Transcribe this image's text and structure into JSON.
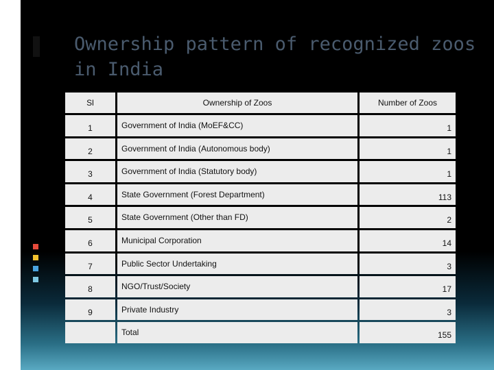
{
  "slide": {
    "title": "Ownership pattern of recognized zoos in India"
  },
  "table": {
    "headers": [
      "Sl",
      "Ownership of Zoos",
      "Number of Zoos"
    ],
    "rows": [
      {
        "sl": "1",
        "owner": "Government of India (MoEF&CC)",
        "count": "1"
      },
      {
        "sl": "2",
        "owner": "Government of India (Autonomous body)",
        "count": "1"
      },
      {
        "sl": "3",
        "owner": "Government of India (Statutory body)",
        "count": "1"
      },
      {
        "sl": "4",
        "owner": "State Government (Forest Department)",
        "count": "113"
      },
      {
        "sl": "5",
        "owner": "State Government (Other than FD)",
        "count": "2"
      },
      {
        "sl": "6",
        "owner": "Municipal Corporation",
        "count": "14"
      },
      {
        "sl": "7",
        "owner": "Public Sector Undertaking",
        "count": "3"
      },
      {
        "sl": "8",
        "owner": "NGO/Trust/Society",
        "count": "17"
      },
      {
        "sl": "9",
        "owner": "Private Industry",
        "count": "3"
      }
    ],
    "total": {
      "label": "Total",
      "count": "155"
    }
  },
  "colors": {
    "title": "#4a5b6e",
    "cell_background": "#ececec",
    "bullet_colors": [
      "#e64a3b",
      "#f2c12e",
      "#4aa3df",
      "#7ec8e3"
    ]
  }
}
